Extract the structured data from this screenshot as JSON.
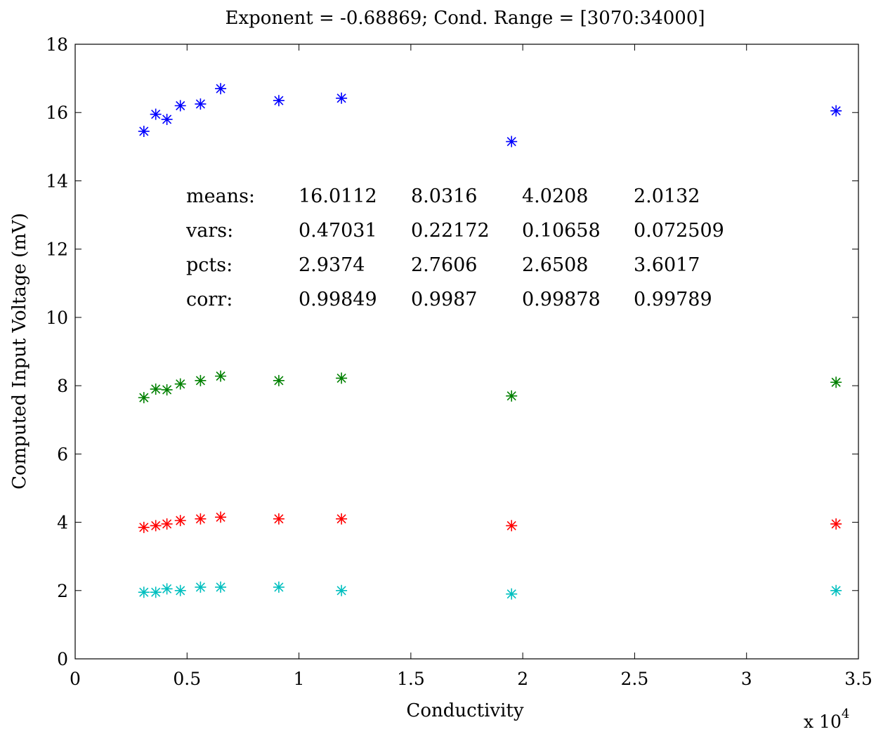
{
  "chart_data": {
    "type": "scatter",
    "title": "Exponent = -0.68869; Cond. Range = [3070:34000]",
    "xlabel": "Conductivity",
    "ylabel": "Computed Input Voltage (mV)",
    "x_multiplier_label": "x 10",
    "x_multiplier_exponent": "4",
    "xlim": [
      0,
      35000
    ],
    "ylim": [
      0,
      18
    ],
    "x_ticks": [
      0,
      5000,
      10000,
      15000,
      20000,
      25000,
      30000,
      35000
    ],
    "x_tick_labels": [
      "0",
      "0.5",
      "1",
      "1.5",
      "2",
      "2.5",
      "3",
      "3.5"
    ],
    "y_ticks": [
      0,
      2,
      4,
      6,
      8,
      10,
      12,
      14,
      16,
      18
    ],
    "y_tick_labels": [
      "0",
      "2",
      "4",
      "6",
      "8",
      "10",
      "12",
      "14",
      "16",
      "18"
    ],
    "grid": false,
    "marker": "asterisk",
    "x": [
      3070,
      3600,
      4100,
      4700,
      5600,
      6500,
      9100,
      11900,
      19500,
      34000
    ],
    "series": [
      {
        "color": "#0000ff",
        "values": [
          15.45,
          15.95,
          15.8,
          16.2,
          16.25,
          16.7,
          16.35,
          16.42,
          15.15,
          16.05
        ]
      },
      {
        "color": "#008000",
        "values": [
          7.65,
          7.9,
          7.88,
          8.05,
          8.15,
          8.28,
          8.15,
          8.22,
          7.7,
          8.1
        ]
      },
      {
        "color": "#ff0000",
        "values": [
          3.85,
          3.9,
          3.95,
          4.05,
          4.1,
          4.15,
          4.1,
          4.1,
          3.9,
          3.95
        ]
      },
      {
        "color": "#00bfbf",
        "values": [
          1.95,
          1.95,
          2.05,
          2.0,
          2.1,
          2.1,
          2.1,
          2.0,
          1.9,
          2.0
        ]
      }
    ],
    "annotation_table": {
      "rows": [
        {
          "label": "means:",
          "values": [
            "16.0112",
            "8.0316",
            "4.0208",
            "2.0132"
          ]
        },
        {
          "label": "vars:",
          "values": [
            "0.47031",
            "0.22172",
            "0.10658",
            "0.072509"
          ]
        },
        {
          "label": "pcts:",
          "values": [
            "2.9374",
            "2.7606",
            "2.6508",
            "3.6017"
          ]
        },
        {
          "label": "corr:",
          "values": [
            "0.99849",
            "0.9987",
            "0.99878",
            "0.99789"
          ]
        }
      ]
    }
  }
}
